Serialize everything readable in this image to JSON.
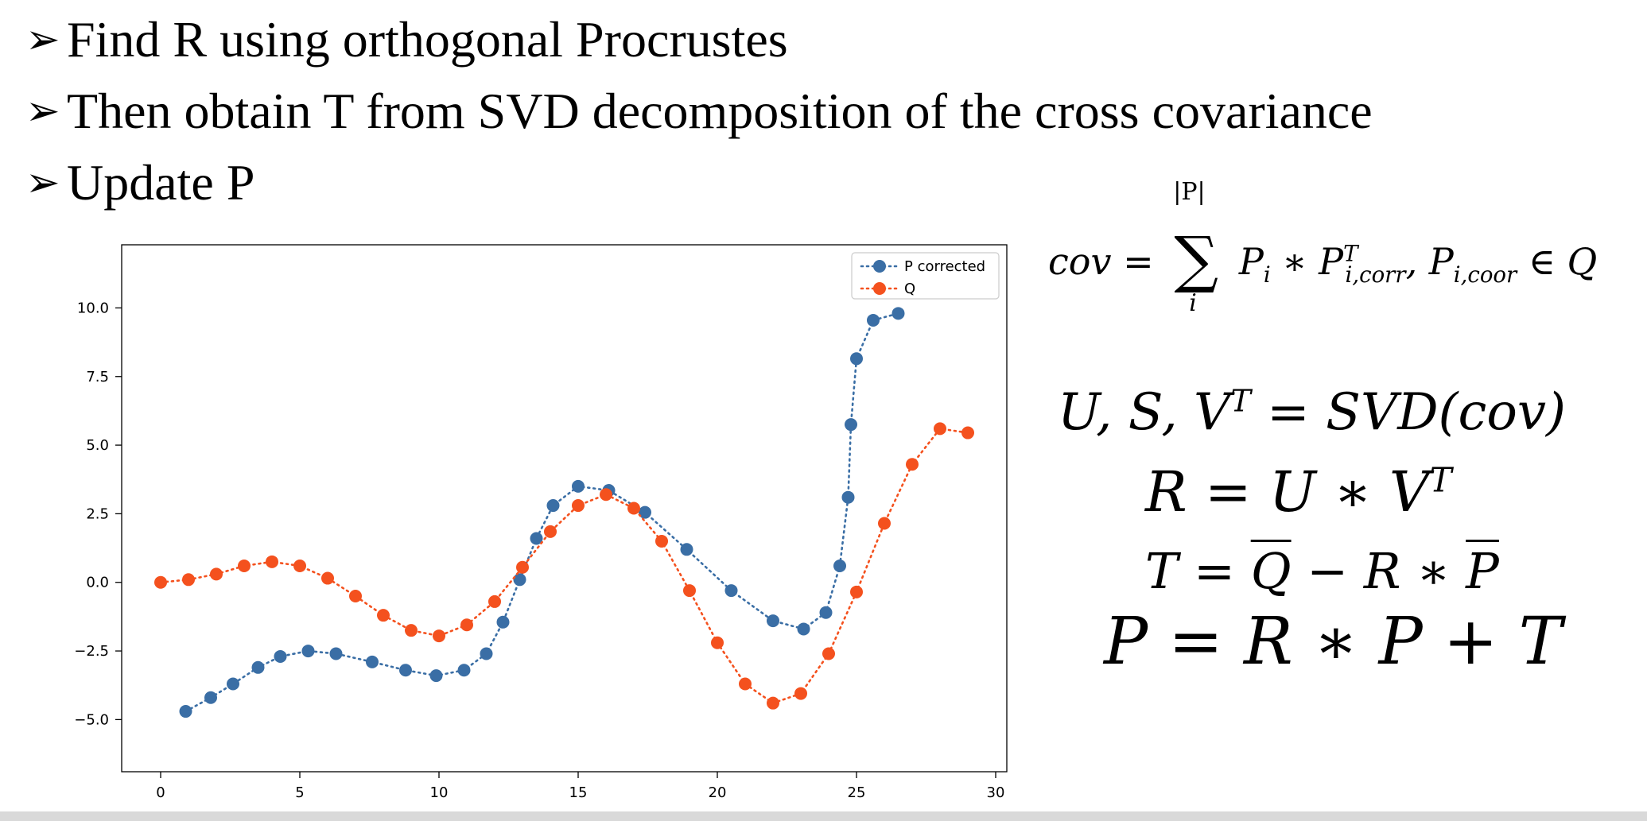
{
  "bullets": [
    {
      "marker": "➢",
      "text": "Find R using orthogonal Procrustes"
    },
    {
      "marker": "➢",
      "text": "Then obtain T from SVD decomposition of the cross covariance"
    },
    {
      "marker": "➢",
      "text": "Update P"
    }
  ],
  "equations": {
    "cov": {
      "lhs": "cov =",
      "upper": "|P|",
      "lower": "i",
      "body": "P_i * P^T_{i,corr}, P_{i,coor} ∈ Q"
    },
    "svd": "U, S, V^T = SVD(cov)",
    "rotation": "R = U * V^T",
    "translation": "T = Q̄ − R * P̄",
    "update": "P = R * P + T"
  },
  "chart_data": {
    "type": "line",
    "xlim": [
      -1.4,
      30.4
    ],
    "ylim": [
      -6.9,
      12.3
    ],
    "xticks": [
      0,
      5,
      10,
      15,
      20,
      25,
      30
    ],
    "yticks": [
      10.0,
      7.5,
      5.0,
      2.5,
      0.0,
      -2.5,
      -5.0
    ],
    "xtick_labels": [
      "0",
      "5",
      "10",
      "15",
      "20",
      "25",
      "30"
    ],
    "ytick_labels": [
      "10.0",
      "7.5",
      "5.0",
      "2.5",
      "0.0",
      "−2.5",
      "−5.0"
    ],
    "legend_position": "top-right",
    "grid": false,
    "series": [
      {
        "name": "P corrected",
        "color": "#3a6ea5",
        "linestyle": "dotted",
        "x": [
          0.9,
          1.8,
          2.6,
          3.5,
          4.3,
          5.3,
          6.3,
          7.6,
          8.8,
          9.9,
          10.9,
          11.7,
          12.3,
          12.9,
          13.5,
          14.1,
          15.0,
          16.1,
          17.4,
          18.9,
          20.5,
          22.0,
          23.1,
          23.9,
          24.4,
          24.7,
          24.8,
          25.0,
          25.6,
          26.5
        ],
        "y": [
          -4.7,
          -4.2,
          -3.7,
          -3.1,
          -2.7,
          -2.5,
          -2.6,
          -2.9,
          -3.2,
          -3.4,
          -3.2,
          -2.6,
          -1.45,
          0.1,
          1.6,
          2.8,
          3.5,
          3.35,
          2.55,
          1.2,
          -0.3,
          -1.4,
          -1.7,
          -1.1,
          0.6,
          3.1,
          5.75,
          8.15,
          9.55,
          9.8
        ]
      },
      {
        "name": "Q",
        "color": "#f4511e",
        "linestyle": "dotted",
        "x": [
          0,
          1,
          2,
          3,
          4,
          5,
          6,
          7,
          8,
          9,
          10,
          11,
          12,
          13,
          14,
          15,
          16,
          17,
          18,
          19,
          20,
          21,
          22,
          23,
          24,
          25,
          26,
          27,
          28,
          29
        ],
        "y": [
          0.0,
          0.1,
          0.3,
          0.6,
          0.75,
          0.6,
          0.15,
          -0.5,
          -1.2,
          -1.75,
          -1.95,
          -1.55,
          -0.7,
          0.55,
          1.85,
          2.8,
          3.2,
          2.7,
          1.5,
          -0.3,
          -2.2,
          -3.7,
          -4.4,
          -4.05,
          -2.6,
          -0.35,
          2.15,
          4.3,
          5.6,
          5.45
        ]
      }
    ]
  }
}
